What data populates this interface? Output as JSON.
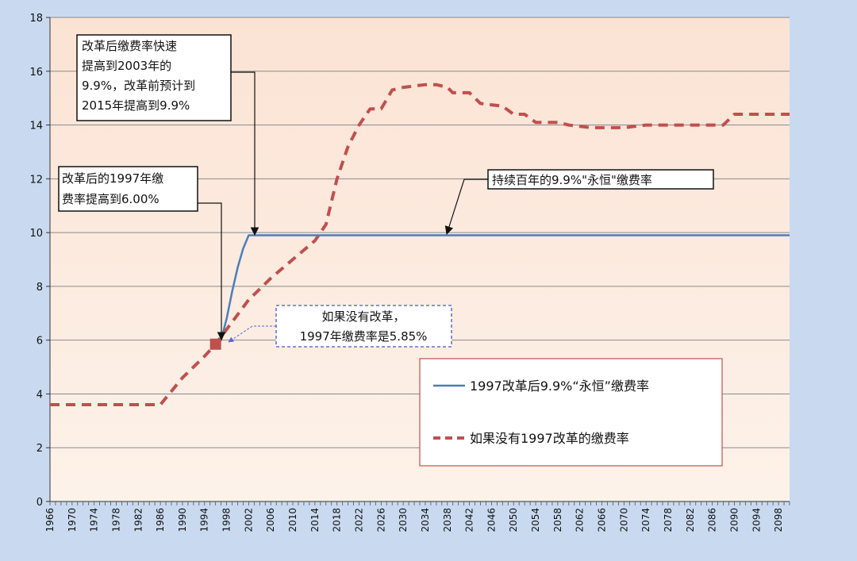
{
  "chart_data": {
    "type": "line",
    "ylim": [
      0,
      18
    ],
    "y_ticks": [
      "0",
      "2",
      "4",
      "6",
      "8",
      "10",
      "12",
      "14",
      "16",
      "18"
    ],
    "x_ticks": [
      "1966",
      "1970",
      "1974",
      "1978",
      "1982",
      "1986",
      "1990",
      "1994",
      "1998",
      "2002",
      "2006",
      "2010",
      "2014",
      "2018",
      "2022",
      "2026",
      "2030",
      "2034",
      "2038",
      "2042",
      "2046",
      "2050",
      "2054",
      "2058",
      "2062",
      "2066",
      "2070",
      "2074",
      "2078",
      "2082",
      "2086",
      "2090",
      "2094",
      "2098"
    ],
    "grid": "horizontal",
    "legend_position": "lower-right",
    "series": [
      {
        "name": "1997改革后9.9%“永恒”缴费率",
        "color": "#4a7ebb",
        "style": "solid",
        "points": [
          [
            1996,
            5.85
          ],
          [
            1997,
            6.0
          ],
          [
            1998,
            6.8
          ],
          [
            1999,
            7.8
          ],
          [
            2000,
            8.7
          ],
          [
            2001,
            9.4
          ],
          [
            2002,
            9.9
          ],
          [
            2003,
            9.9
          ],
          [
            2010,
            9.9
          ],
          [
            2030,
            9.9
          ],
          [
            2050,
            9.9
          ],
          [
            2070,
            9.9
          ],
          [
            2090,
            9.9
          ],
          [
            2100,
            9.9
          ]
        ]
      },
      {
        "name": "如果没有1997改革的缴费率",
        "color": "#c0504d",
        "style": "dashed",
        "points": [
          [
            1966,
            3.6
          ],
          [
            1970,
            3.6
          ],
          [
            1974,
            3.6
          ],
          [
            1978,
            3.6
          ],
          [
            1982,
            3.6
          ],
          [
            1986,
            3.6
          ],
          [
            1988,
            4.1
          ],
          [
            1990,
            4.6
          ],
          [
            1994,
            5.4
          ],
          [
            1996,
            5.85
          ],
          [
            1998,
            6.4
          ],
          [
            2002,
            7.5
          ],
          [
            2006,
            8.3
          ],
          [
            2010,
            9.0
          ],
          [
            2014,
            9.7
          ],
          [
            2016,
            10.3
          ],
          [
            2018,
            12.0
          ],
          [
            2020,
            13.2
          ],
          [
            2022,
            14.0
          ],
          [
            2024,
            14.6
          ],
          [
            2026,
            14.6
          ],
          [
            2028,
            15.3
          ],
          [
            2030,
            15.4
          ],
          [
            2034,
            15.5
          ],
          [
            2036,
            15.5
          ],
          [
            2038,
            15.4
          ],
          [
            2039,
            15.2
          ],
          [
            2042,
            15.2
          ],
          [
            2044,
            14.8
          ],
          [
            2048,
            14.7
          ],
          [
            2050,
            14.4
          ],
          [
            2052,
            14.4
          ],
          [
            2054,
            14.1
          ],
          [
            2058,
            14.1
          ],
          [
            2060,
            14.0
          ],
          [
            2064,
            13.9
          ],
          [
            2066,
            13.9
          ],
          [
            2070,
            13.9
          ],
          [
            2074,
            14.0
          ],
          [
            2078,
            14.0
          ],
          [
            2082,
            14.0
          ],
          [
            2086,
            14.0
          ],
          [
            2088,
            14.0
          ],
          [
            2090,
            14.4
          ],
          [
            2094,
            14.4
          ],
          [
            2098,
            14.4
          ],
          [
            2100,
            14.4
          ]
        ]
      }
    ],
    "markers": [
      {
        "x": 1996,
        "y": 5.85,
        "color": "#c0504d"
      }
    ],
    "annotations": {
      "box1": [
        "改革后缴费率快速",
        "提高到2003年的",
        "9.9%，改革前预计到",
        "2015年提高到9.9%"
      ],
      "box2": [
        "改革后的1997年缴",
        "费率提高到6.00%"
      ],
      "box3": [
        "持续百年的9.9%\"永恒\"缴费率"
      ],
      "box4": [
        "如果没有改革，",
        "1997年缴费率是5.85%"
      ]
    }
  }
}
